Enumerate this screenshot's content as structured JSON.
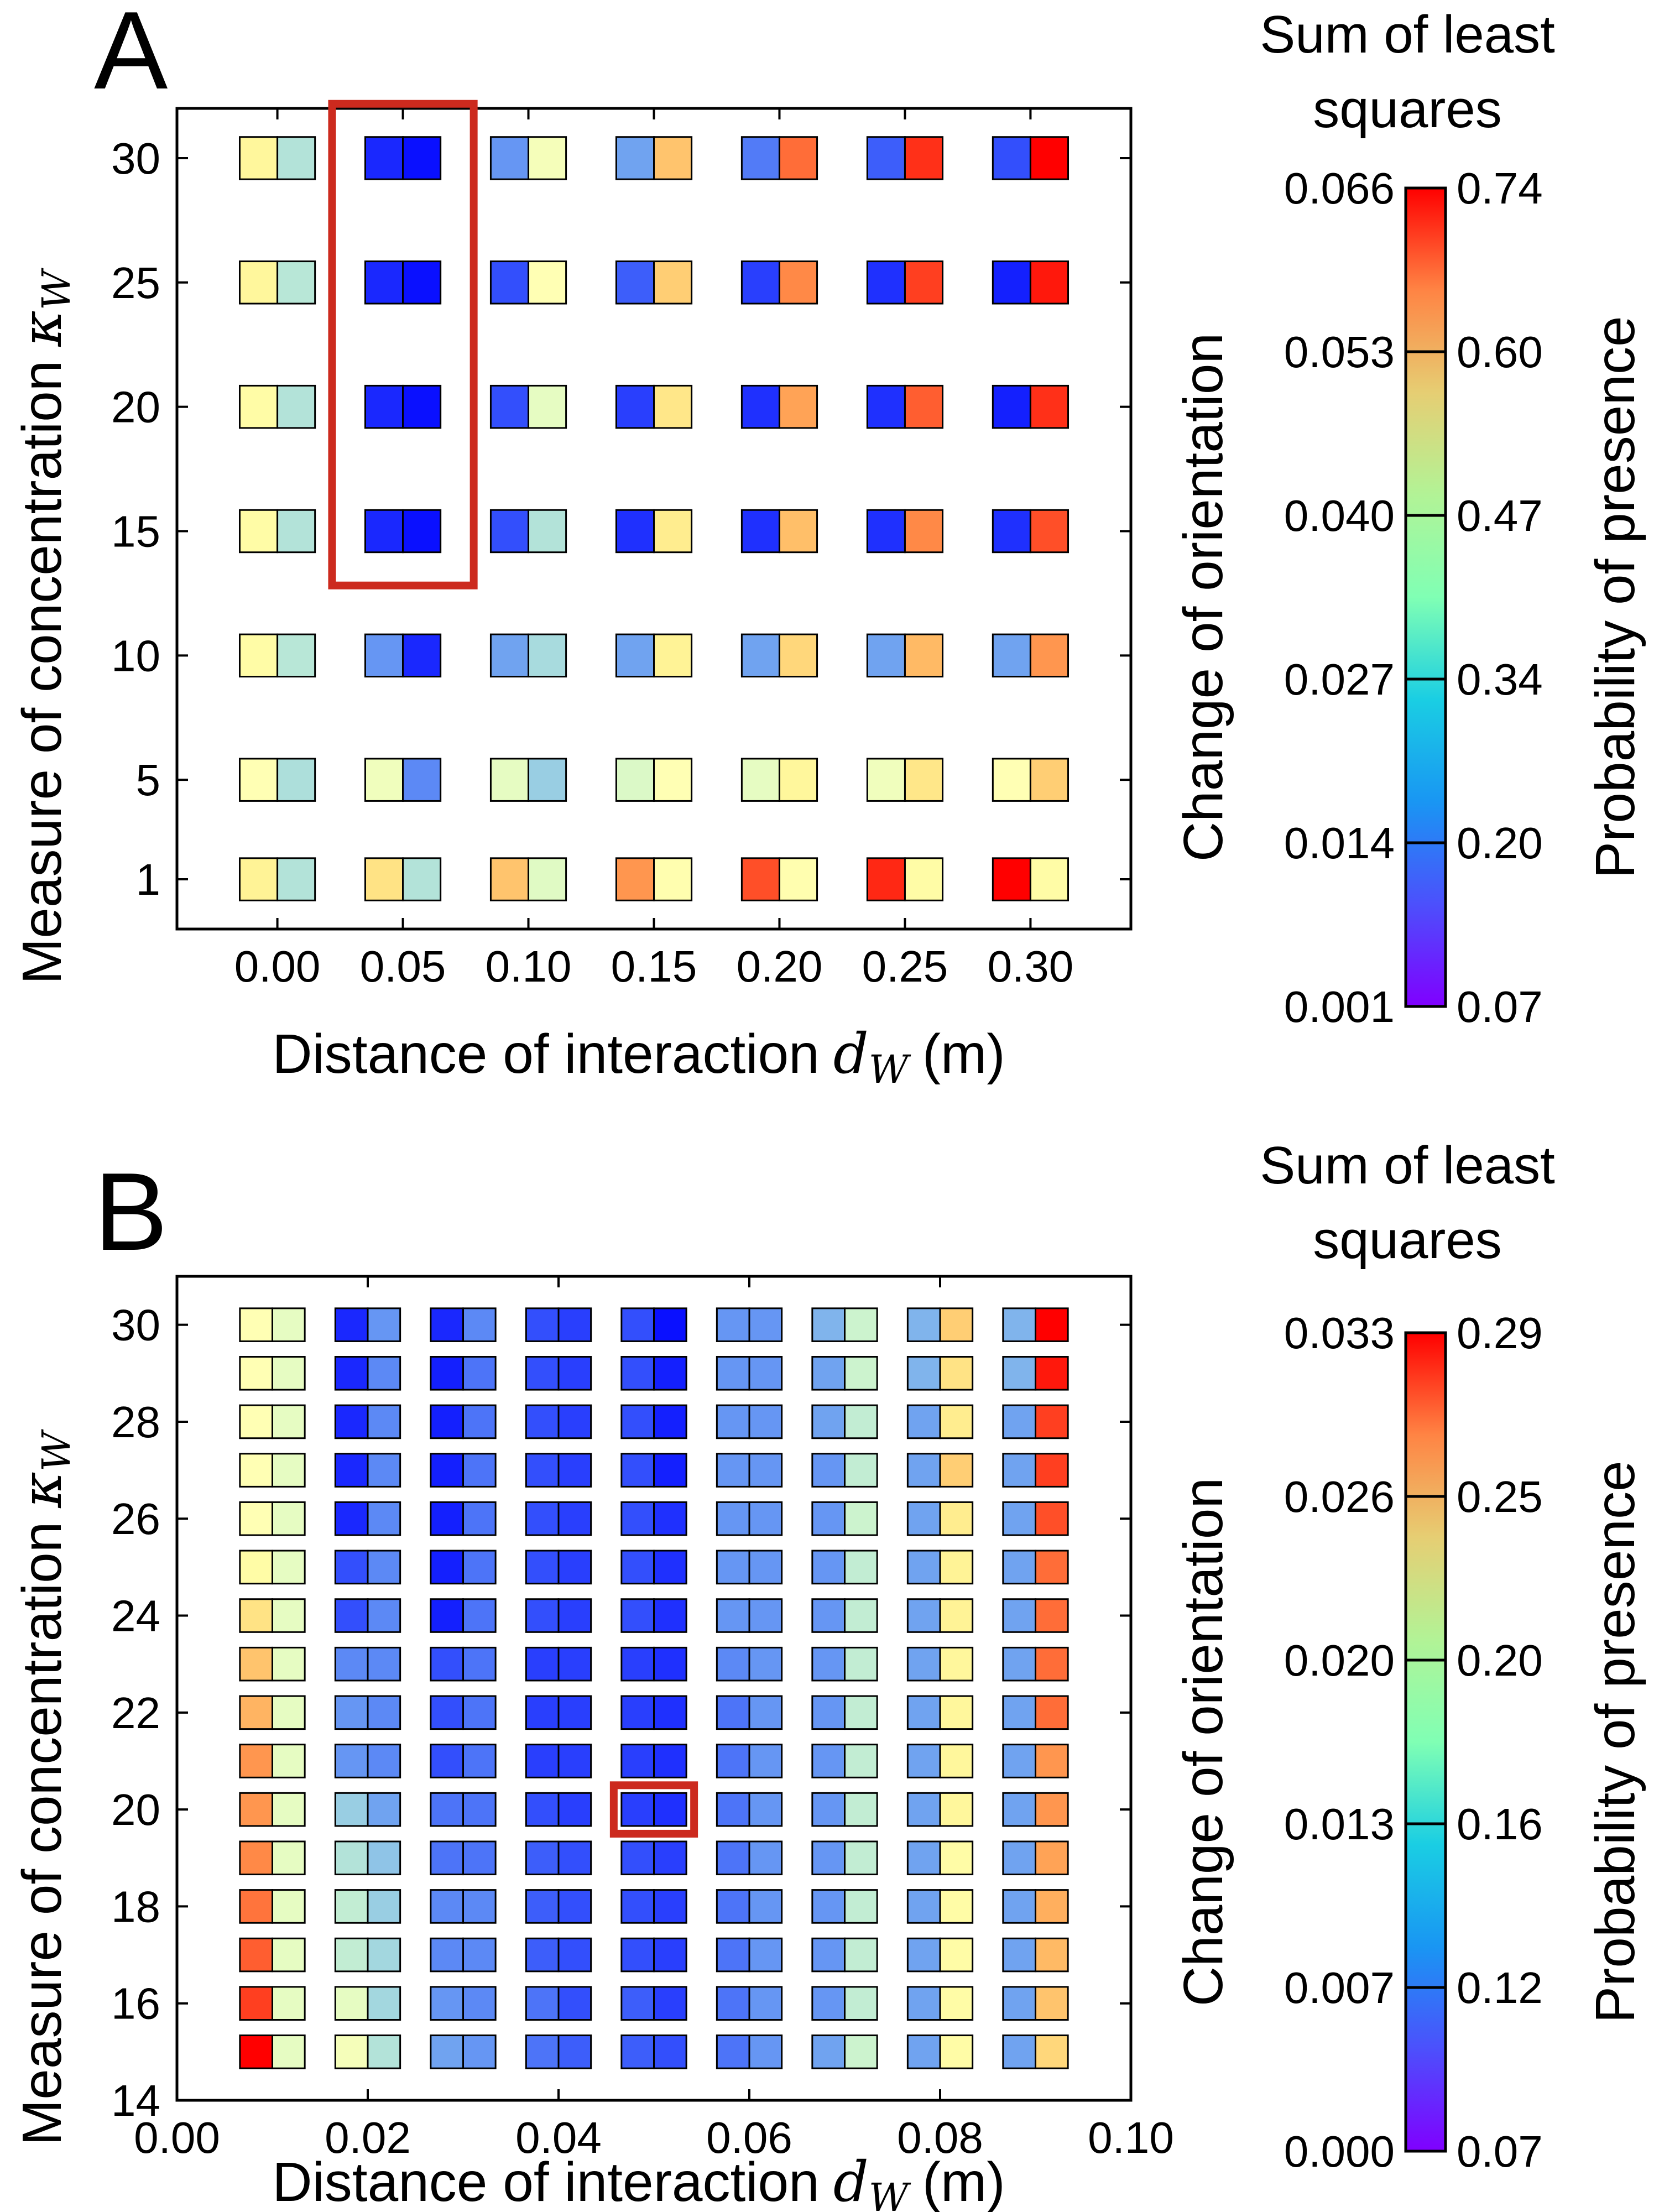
{
  "chart_data": [
    {
      "panel": "A",
      "type": "heatmap",
      "xlabel": "Distance of interaction",
      "xlabel_math": "d",
      "xlabel_math_sub": "W",
      "xlabel_unit": "(m)",
      "ylabel": "Measure of concentration",
      "ylabel_math": "κ",
      "ylabel_math_sub": "W",
      "xlim": [
        -0.04,
        0.34
      ],
      "ylim": [
        -1,
        32
      ],
      "xticks": [
        0.0,
        0.05,
        0.1,
        0.15,
        0.2,
        0.25,
        0.3
      ],
      "xtick_labels": [
        "0.00",
        "0.05",
        "0.10",
        "0.15",
        "0.20",
        "0.25",
        "0.30"
      ],
      "yticks": [
        1,
        5,
        10,
        15,
        20,
        25,
        30
      ],
      "ytick_labels": [
        "1",
        "5",
        "10",
        "15",
        "20",
        "25",
        "30"
      ],
      "cell_half_width_x": 0.015,
      "cell_half_height_y": 0.85,
      "d_values": [
        0.0,
        0.05,
        0.1,
        0.15,
        0.2,
        0.25,
        0.3
      ],
      "kappa_values": [
        30,
        25,
        20,
        15,
        10,
        5,
        1
      ],
      "orientation_norm": [
        [
          0.58,
          0.05,
          0.2,
          0.22,
          0.16,
          0.12,
          0.1
        ],
        [
          0.58,
          0.05,
          0.1,
          0.12,
          0.08,
          0.06,
          0.04
        ],
        [
          0.55,
          0.05,
          0.1,
          0.08,
          0.06,
          0.06,
          0.04
        ],
        [
          0.55,
          0.05,
          0.1,
          0.06,
          0.06,
          0.06,
          0.06
        ],
        [
          0.55,
          0.2,
          0.22,
          0.22,
          0.22,
          0.22,
          0.22
        ],
        [
          0.5,
          0.47,
          0.45,
          0.43,
          0.45,
          0.47,
          0.5
        ],
        [
          0.6,
          0.65,
          0.72,
          0.8,
          0.9,
          0.95,
          1.0
        ]
      ],
      "presence_norm": [
        [
          0.35,
          0.02,
          0.48,
          0.72,
          0.86,
          0.94,
          1.0
        ],
        [
          0.36,
          0.02,
          0.5,
          0.7,
          0.82,
          0.92,
          0.97
        ],
        [
          0.35,
          0.02,
          0.45,
          0.64,
          0.78,
          0.88,
          0.94
        ],
        [
          0.35,
          0.02,
          0.35,
          0.62,
          0.73,
          0.82,
          0.9
        ],
        [
          0.36,
          0.05,
          0.33,
          0.6,
          0.68,
          0.74,
          0.8
        ],
        [
          0.34,
          0.18,
          0.3,
          0.5,
          0.58,
          0.64,
          0.7
        ],
        [
          0.35,
          0.35,
          0.44,
          0.52,
          0.52,
          0.55,
          0.55
        ]
      ],
      "highlight": {
        "d": 0.05,
        "kappa_from": 15,
        "kappa_to": 30,
        "color": "#cc2a1e"
      },
      "colorbar": {
        "title_line1": "Sum of least",
        "title_line2": "squares",
        "left_label": "Change of orientation",
        "right_label": "Probability of presence",
        "left_ticks": [
          "0.001",
          "0.014",
          "0.027",
          "0.040",
          "0.053",
          "0.066"
        ],
        "right_ticks": [
          "0.07",
          "0.20",
          "0.34",
          "0.47",
          "0.60",
          "0.74"
        ]
      }
    },
    {
      "panel": "B",
      "type": "heatmap",
      "xlabel": "Distance of interaction",
      "xlabel_math": "d",
      "xlabel_math_sub": "W",
      "xlabel_unit": "(m)",
      "ylabel": "Measure of concentration",
      "ylabel_math": "κ",
      "ylabel_math_sub": "W",
      "xlim": [
        0.0,
        0.1
      ],
      "ylim": [
        14,
        31
      ],
      "xticks": [
        0.0,
        0.02,
        0.04,
        0.06,
        0.08,
        0.1
      ],
      "xtick_labels": [
        "0.00",
        "0.02",
        "0.04",
        "0.06",
        "0.08",
        "0.10"
      ],
      "yticks": [
        14,
        16,
        18,
        20,
        22,
        24,
        26,
        28,
        30
      ],
      "ytick_labels": [
        "14",
        "16",
        "18",
        "20",
        "22",
        "24",
        "26",
        "28",
        "30"
      ],
      "cell_half_width_x": 0.0034,
      "cell_half_height_y": 0.34,
      "d_values": [
        0.01,
        0.02,
        0.03,
        0.04,
        0.05,
        0.06,
        0.07,
        0.08,
        0.09
      ],
      "kappa_values": [
        30,
        29,
        28,
        27,
        26,
        25,
        24,
        23,
        22,
        21,
        20,
        19,
        18,
        17,
        16,
        15
      ],
      "orientation_norm": [
        [
          0.5,
          0.05,
          0.05,
          0.1,
          0.1,
          0.2,
          0.25,
          0.25,
          0.25
        ],
        [
          0.5,
          0.05,
          0.04,
          0.1,
          0.1,
          0.2,
          0.22,
          0.25,
          0.25
        ],
        [
          0.5,
          0.05,
          0.04,
          0.1,
          0.1,
          0.2,
          0.22,
          0.22,
          0.22
        ],
        [
          0.5,
          0.05,
          0.04,
          0.1,
          0.1,
          0.2,
          0.2,
          0.22,
          0.22
        ],
        [
          0.5,
          0.05,
          0.04,
          0.1,
          0.1,
          0.2,
          0.2,
          0.22,
          0.22
        ],
        [
          0.55,
          0.1,
          0.04,
          0.1,
          0.1,
          0.2,
          0.2,
          0.22,
          0.22
        ],
        [
          0.65,
          0.1,
          0.04,
          0.1,
          0.1,
          0.2,
          0.2,
          0.22,
          0.22
        ],
        [
          0.72,
          0.18,
          0.1,
          0.08,
          0.08,
          0.18,
          0.2,
          0.22,
          0.22
        ],
        [
          0.75,
          0.2,
          0.1,
          0.08,
          0.08,
          0.15,
          0.2,
          0.22,
          0.22
        ],
        [
          0.8,
          0.2,
          0.1,
          0.08,
          0.08,
          0.15,
          0.2,
          0.22,
          0.22
        ],
        [
          0.8,
          0.3,
          0.15,
          0.1,
          0.08,
          0.15,
          0.2,
          0.22,
          0.22
        ],
        [
          0.82,
          0.35,
          0.15,
          0.12,
          0.1,
          0.15,
          0.2,
          0.22,
          0.22
        ],
        [
          0.85,
          0.38,
          0.18,
          0.12,
          0.1,
          0.15,
          0.2,
          0.22,
          0.22
        ],
        [
          0.88,
          0.38,
          0.18,
          0.12,
          0.1,
          0.15,
          0.2,
          0.22,
          0.22
        ],
        [
          0.92,
          0.45,
          0.2,
          0.15,
          0.12,
          0.15,
          0.2,
          0.22,
          0.22
        ],
        [
          1.0,
          0.48,
          0.22,
          0.15,
          0.12,
          0.15,
          0.22,
          0.22,
          0.22
        ]
      ],
      "presence_norm": [
        [
          0.45,
          0.2,
          0.18,
          0.08,
          0.02,
          0.2,
          0.4,
          0.7,
          1.0
        ],
        [
          0.45,
          0.18,
          0.15,
          0.08,
          0.04,
          0.2,
          0.4,
          0.65,
          0.97
        ],
        [
          0.45,
          0.18,
          0.15,
          0.08,
          0.04,
          0.2,
          0.38,
          0.62,
          0.92
        ],
        [
          0.45,
          0.18,
          0.15,
          0.08,
          0.04,
          0.2,
          0.38,
          0.7,
          0.92
        ],
        [
          0.45,
          0.18,
          0.15,
          0.08,
          0.06,
          0.2,
          0.4,
          0.62,
          0.9
        ],
        [
          0.45,
          0.18,
          0.15,
          0.08,
          0.06,
          0.2,
          0.38,
          0.6,
          0.86
        ],
        [
          0.45,
          0.18,
          0.15,
          0.08,
          0.06,
          0.2,
          0.38,
          0.6,
          0.86
        ],
        [
          0.45,
          0.18,
          0.15,
          0.08,
          0.06,
          0.2,
          0.38,
          0.58,
          0.86
        ],
        [
          0.45,
          0.18,
          0.15,
          0.08,
          0.06,
          0.2,
          0.38,
          0.58,
          0.86
        ],
        [
          0.45,
          0.18,
          0.15,
          0.08,
          0.06,
          0.2,
          0.38,
          0.58,
          0.8
        ],
        [
          0.45,
          0.22,
          0.15,
          0.08,
          0.06,
          0.2,
          0.38,
          0.58,
          0.8
        ],
        [
          0.45,
          0.28,
          0.15,
          0.1,
          0.08,
          0.2,
          0.38,
          0.55,
          0.78
        ],
        [
          0.45,
          0.3,
          0.18,
          0.1,
          0.08,
          0.2,
          0.38,
          0.55,
          0.76
        ],
        [
          0.45,
          0.32,
          0.18,
          0.1,
          0.08,
          0.2,
          0.38,
          0.55,
          0.74
        ],
        [
          0.45,
          0.32,
          0.18,
          0.1,
          0.08,
          0.2,
          0.38,
          0.55,
          0.72
        ],
        [
          0.45,
          0.35,
          0.2,
          0.12,
          0.1,
          0.2,
          0.4,
          0.55,
          0.68
        ]
      ],
      "highlight": {
        "d": 0.05,
        "kappa_from": 20,
        "kappa_to": 20,
        "color": "#cc2a1e"
      },
      "colorbar": {
        "title_line1": "Sum of least",
        "title_line2": "squares",
        "left_label": "Change of orientation",
        "right_label": "Probability of presence",
        "left_ticks": [
          "0.000",
          "0.007",
          "0.013",
          "0.020",
          "0.026",
          "0.033"
        ],
        "right_ticks": [
          "0.07",
          "0.12",
          "0.16",
          "0.20",
          "0.25",
          "0.29"
        ]
      }
    }
  ]
}
